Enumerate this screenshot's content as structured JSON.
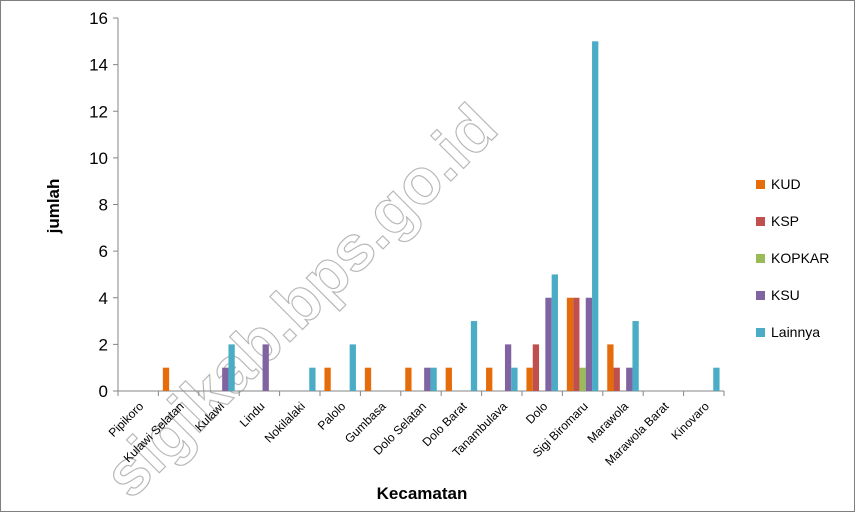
{
  "chart_data": {
    "type": "bar",
    "title": "",
    "xlabel": "Kecamatan",
    "ylabel": "jumlah",
    "ylim": [
      0,
      16
    ],
    "yticks": [
      0,
      2,
      4,
      6,
      8,
      10,
      12,
      14,
      16
    ],
    "grid": false,
    "legend_position": "right",
    "categories": [
      "Pipikoro",
      "Kulawi Selatan",
      "Kulawi",
      "Lindu",
      "Nokilalaki",
      "Palolo",
      "Gumbasa",
      "Dolo Selatan",
      "Dolo Barat",
      "Tanambulava",
      "Dolo",
      "Sigi Biromaru",
      "Marawola",
      "Marawola Barat",
      "Kinovaro"
    ],
    "series": [
      {
        "name": "KUD",
        "color": "#E46C0A",
        "values": [
          0,
          1,
          0,
          0,
          0,
          1,
          1,
          1,
          1,
          1,
          1,
          4,
          2,
          0,
          0
        ]
      },
      {
        "name": "KSP",
        "color": "#C0504D",
        "values": [
          0,
          0,
          0,
          0,
          0,
          0,
          0,
          0,
          0,
          0,
          2,
          4,
          1,
          0,
          0
        ]
      },
      {
        "name": "KOPKAR",
        "color": "#9BBB59",
        "values": [
          0,
          0,
          0,
          0,
          0,
          0,
          0,
          0,
          0,
          0,
          0,
          1,
          0,
          0,
          0
        ]
      },
      {
        "name": "KSU",
        "color": "#8064A2",
        "values": [
          0,
          0,
          1,
          2,
          0,
          0,
          0,
          1,
          0,
          2,
          4,
          4,
          1,
          0,
          0
        ]
      },
      {
        "name": "Lainnya",
        "color": "#4BACC6",
        "values": [
          0,
          0,
          2,
          0,
          1,
          2,
          0,
          1,
          3,
          1,
          5,
          15,
          3,
          0,
          1
        ]
      }
    ]
  },
  "watermark": "sigikab.bps.go.id"
}
